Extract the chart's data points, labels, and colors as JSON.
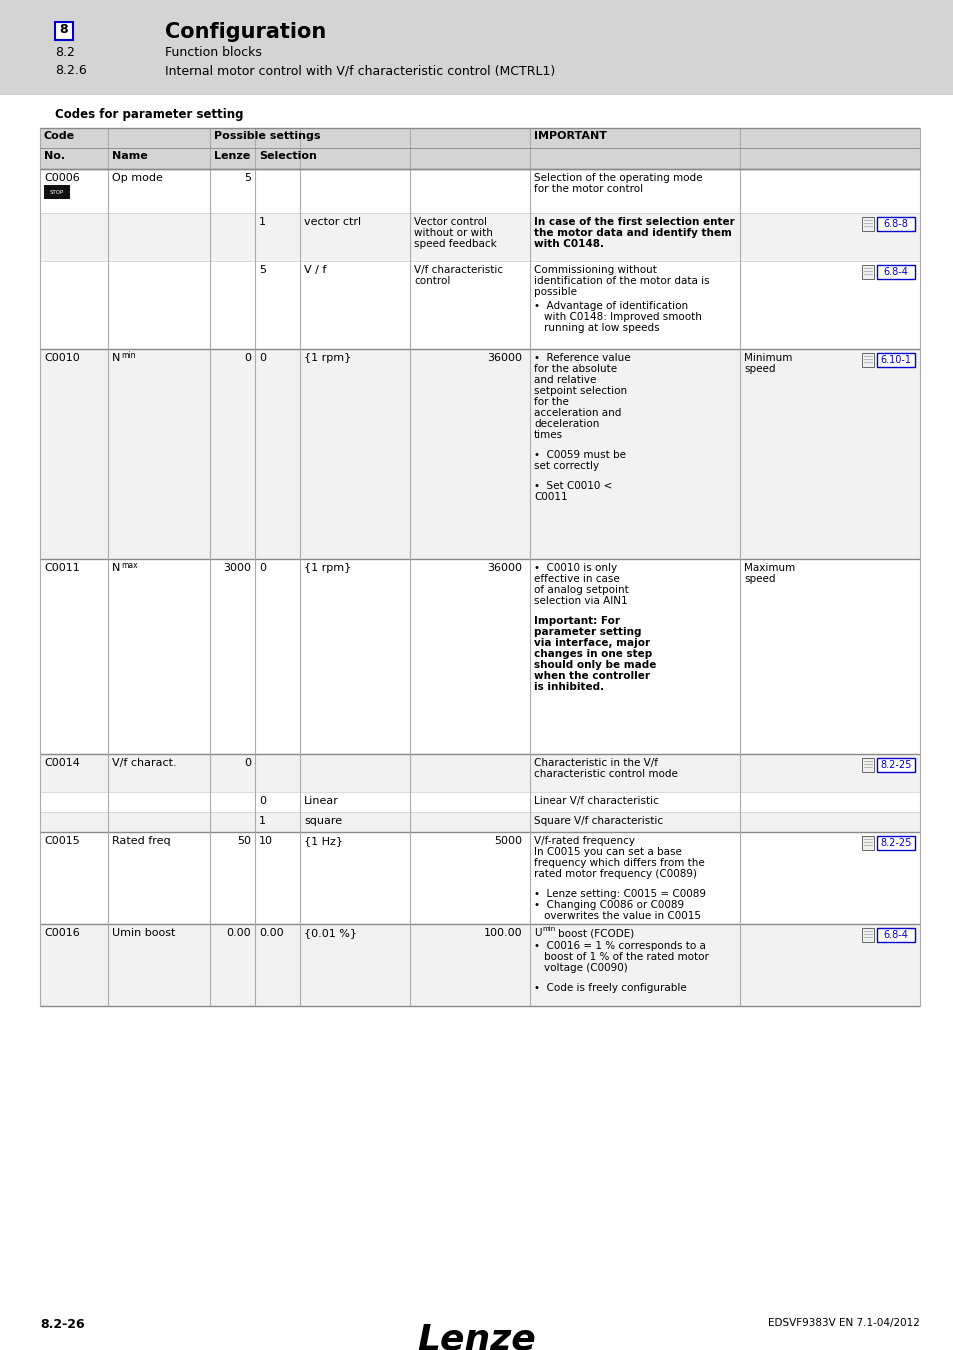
{
  "header_bg": "#d4d4d4",
  "page_bg": "#ffffff",
  "table_header_bg": "#d4d4d4",
  "table_border": "#aaaaaa",
  "link_color": "#0000cc",
  "link_border": "#0000cc",
  "text_color": "#000000",
  "title_section": "8",
  "title_bold": "Configuration",
  "subtitle1_num": "8.2",
  "subtitle1": "Function blocks",
  "subtitle2_num": "8.2.6",
  "subtitle2": "Internal motor control with V/f characteristic control (MCTRL1)",
  "section_label": "Codes for parameter setting",
  "footer_left": "8.2-26",
  "footer_center": "Lenze",
  "footer_right": "EDSVF9383V EN 7.1-04/2012"
}
